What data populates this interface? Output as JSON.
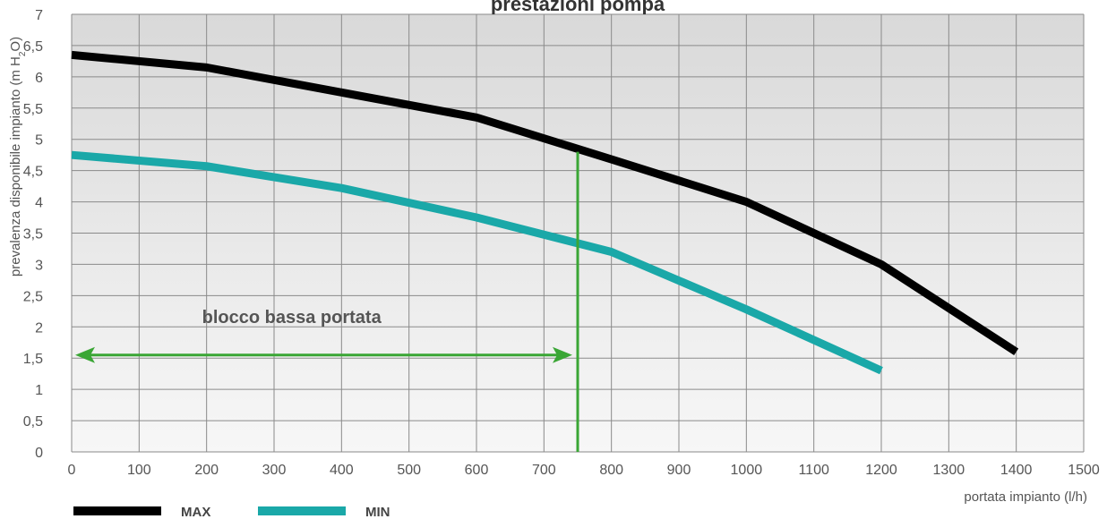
{
  "chart_data": {
    "type": "line",
    "title": "prestazioni pompa",
    "xlabel": "portata impianto (l/h)",
    "ylabel": {
      "prefix": "prevalenza disponibile impianto (m H",
      "sub": "2",
      "suffix": "O)"
    },
    "xlim": [
      0,
      1500
    ],
    "ylim": [
      0,
      7
    ],
    "x_ticks": [
      "0",
      "100",
      "200",
      "300",
      "400",
      "500",
      "600",
      "700",
      "800",
      "900",
      "1000",
      "1100",
      "1200",
      "1300",
      "1400",
      "1500"
    ],
    "y_ticks": [
      "0",
      "0,5",
      "1",
      "1,5",
      "2",
      "2,5",
      "3",
      "3,5",
      "4",
      "4,5",
      "5",
      "5,5",
      "6",
      "6,5",
      "7"
    ],
    "grid": true,
    "legend_position": "bottom-left",
    "series": [
      {
        "name": "MAX",
        "color": "#000000",
        "x": [
          0,
          200,
          400,
          600,
          800,
          1000,
          1200,
          1400
        ],
        "y": [
          6.35,
          6.15,
          5.75,
          5.35,
          4.68,
          4.0,
          3.0,
          1.6
        ]
      },
      {
        "name": "MIN",
        "color": "#1aa8a8",
        "x": [
          0,
          200,
          400,
          600,
          800,
          1000,
          1200
        ],
        "y": [
          4.75,
          4.57,
          4.22,
          3.75,
          3.2,
          2.28,
          1.3
        ]
      }
    ],
    "annotation": {
      "text": "blocco bassa portata",
      "color": "#3aa635",
      "line_x": 750,
      "line_y_top": 4.8,
      "arrow_y": 1.55,
      "arrow_from": 0,
      "arrow_to": 750
    }
  }
}
